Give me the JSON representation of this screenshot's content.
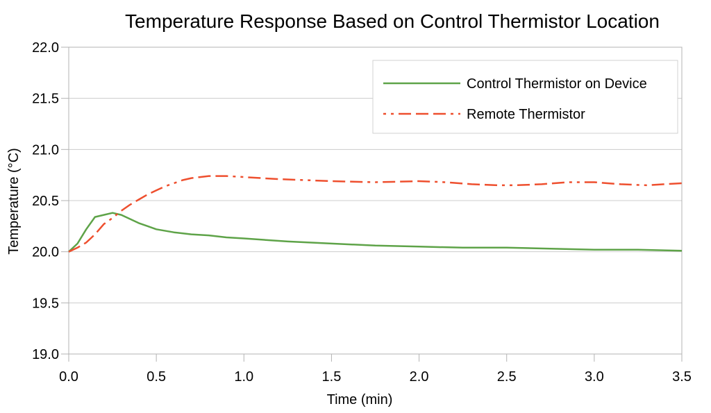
{
  "chart_data": {
    "type": "line",
    "title": "Temperature Response Based on Control Thermistor Location",
    "xlabel": "Time (min)",
    "ylabel": "Temperature (°C)",
    "xlim": [
      0.0,
      3.5
    ],
    "ylim": [
      19.0,
      22.0
    ],
    "x_ticks": [
      0.0,
      0.5,
      1.0,
      1.5,
      2.0,
      2.5,
      3.0,
      3.5
    ],
    "y_ticks": [
      19.0,
      19.5,
      20.0,
      20.5,
      21.0,
      21.5,
      22.0
    ],
    "tick_decimals": 1,
    "grid": "horizontal-only",
    "legend_position": "top-right-inside",
    "series": [
      {
        "name": "Control Thermistor on Device",
        "color": "#5ea348",
        "line_style": "solid",
        "points": [
          [
            0.0,
            20.0
          ],
          [
            0.05,
            20.08
          ],
          [
            0.1,
            20.22
          ],
          [
            0.15,
            20.34
          ],
          [
            0.2,
            20.36
          ],
          [
            0.25,
            20.38
          ],
          [
            0.3,
            20.36
          ],
          [
            0.35,
            20.32
          ],
          [
            0.4,
            20.28
          ],
          [
            0.45,
            20.25
          ],
          [
            0.5,
            20.22
          ],
          [
            0.6,
            20.19
          ],
          [
            0.7,
            20.17
          ],
          [
            0.8,
            20.16
          ],
          [
            0.9,
            20.14
          ],
          [
            1.0,
            20.13
          ],
          [
            1.25,
            20.1
          ],
          [
            1.5,
            20.08
          ],
          [
            1.75,
            20.06
          ],
          [
            2.0,
            20.05
          ],
          [
            2.25,
            20.04
          ],
          [
            2.5,
            20.04
          ],
          [
            2.75,
            20.03
          ],
          [
            3.0,
            20.02
          ],
          [
            3.25,
            20.02
          ],
          [
            3.5,
            20.01
          ]
        ]
      },
      {
        "name": "Remote Thermistor",
        "color": "#ee4f2e",
        "line_style": "dash-dash-dash-dot-dot",
        "points": [
          [
            0.0,
            20.0
          ],
          [
            0.05,
            20.04
          ],
          [
            0.1,
            20.09
          ],
          [
            0.15,
            20.17
          ],
          [
            0.2,
            20.27
          ],
          [
            0.25,
            20.33
          ],
          [
            0.3,
            20.4
          ],
          [
            0.35,
            20.46
          ],
          [
            0.4,
            20.51
          ],
          [
            0.45,
            20.56
          ],
          [
            0.5,
            20.6
          ],
          [
            0.55,
            20.64
          ],
          [
            0.6,
            20.67
          ],
          [
            0.65,
            20.7
          ],
          [
            0.7,
            20.72
          ],
          [
            0.75,
            20.73
          ],
          [
            0.8,
            20.74
          ],
          [
            0.9,
            20.74
          ],
          [
            1.0,
            20.73
          ],
          [
            1.1,
            20.72
          ],
          [
            1.2,
            20.71
          ],
          [
            1.35,
            20.7
          ],
          [
            1.5,
            20.69
          ],
          [
            1.75,
            20.68
          ],
          [
            2.0,
            20.69
          ],
          [
            2.15,
            20.68
          ],
          [
            2.3,
            20.66
          ],
          [
            2.45,
            20.65
          ],
          [
            2.55,
            20.65
          ],
          [
            2.7,
            20.66
          ],
          [
            2.85,
            20.68
          ],
          [
            3.0,
            20.68
          ],
          [
            3.15,
            20.66
          ],
          [
            3.3,
            20.65
          ],
          [
            3.4,
            20.66
          ],
          [
            3.5,
            20.67
          ]
        ]
      }
    ],
    "colors": {
      "gridline": "#cccccc",
      "axis": "#b3b3b3",
      "legend_border": "#d0d0d0",
      "legend_fill": "#ffffff",
      "text": "#000000"
    }
  }
}
